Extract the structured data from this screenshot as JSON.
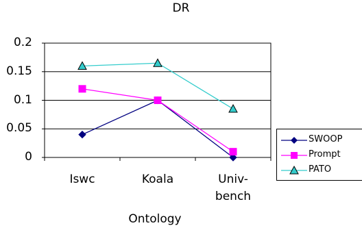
{
  "chart_data": {
    "type": "line",
    "title": "DR",
    "xlabel": "Ontology",
    "ylabel": "",
    "categories": [
      "Iswc",
      "Koala",
      "Univ-\nbench"
    ],
    "ylim": [
      0,
      0.2
    ],
    "yticks": [
      "0",
      "0.05",
      "0.1",
      "0.15",
      "0.2"
    ],
    "grid": true,
    "legend_position": "right",
    "series": [
      {
        "name": "SWOOP",
        "values": [
          0.04,
          0.1,
          0.0
        ],
        "color": "#000080",
        "marker": "diamond"
      },
      {
        "name": "Prompt",
        "values": [
          0.12,
          0.1,
          0.01
        ],
        "color": "#ff00ff",
        "marker": "square"
      },
      {
        "name": "PATO",
        "values": [
          0.16,
          0.165,
          0.085
        ],
        "color": "#33cccc",
        "marker": "triangle"
      }
    ]
  }
}
